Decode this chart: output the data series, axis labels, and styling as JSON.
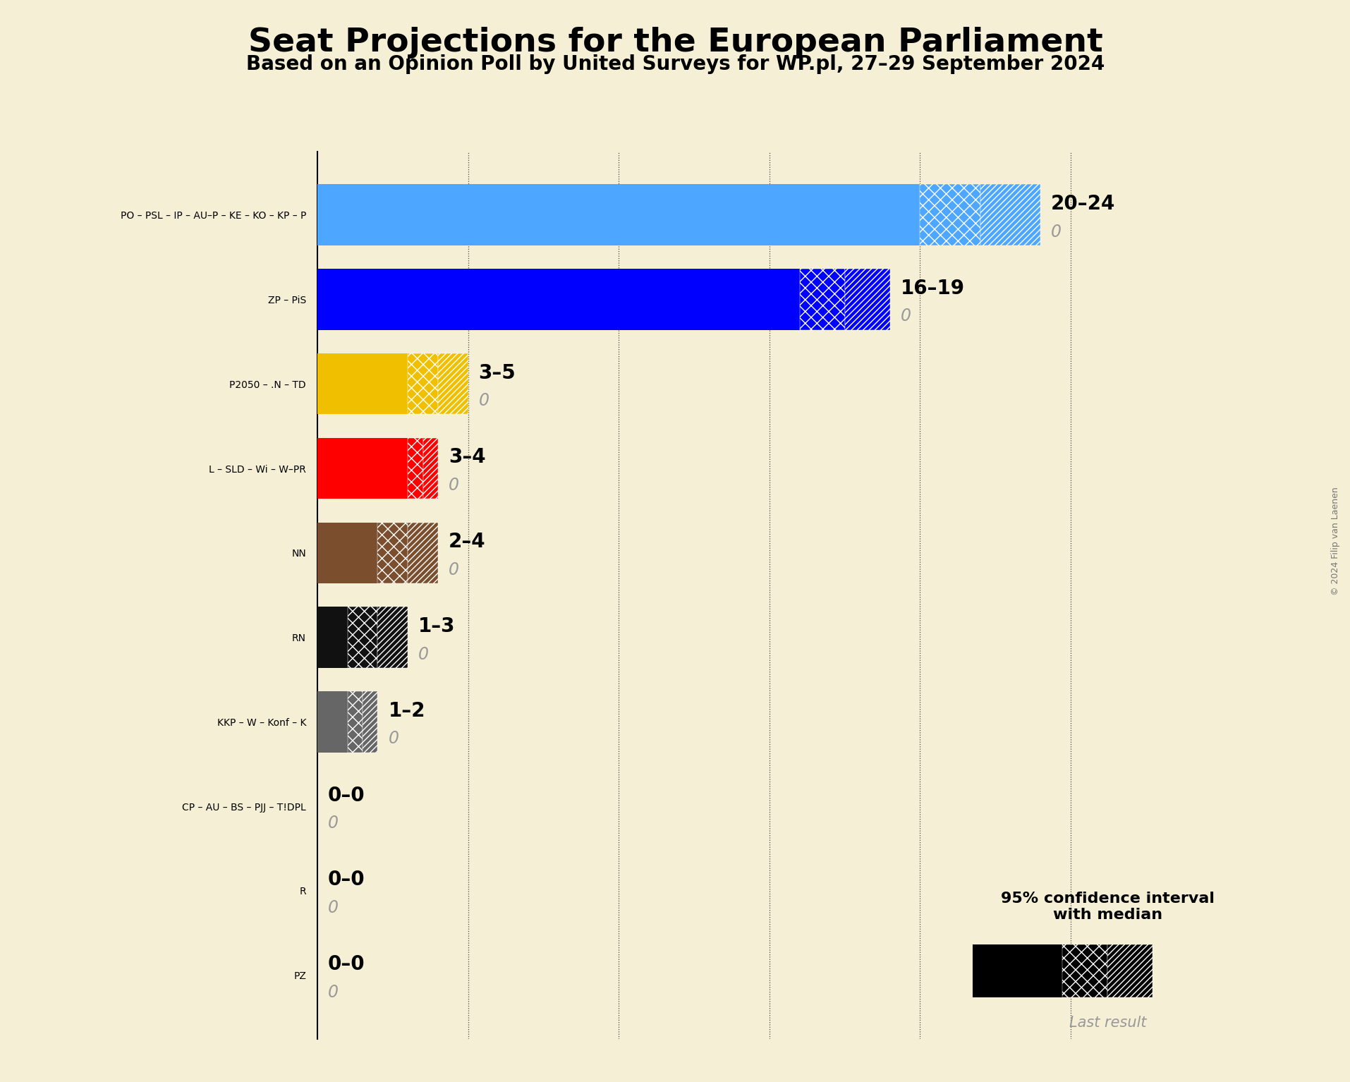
{
  "title": "Seat Projections for the European Parliament",
  "subtitle": "Based on an Opinion Poll by United Surveys for WP.pl, 27–29 September 2024",
  "copyright": "© 2024 Filip van Laenen",
  "background_color": "#f5f0d5",
  "parties": [
    "PO – PSL – IP – AU–P – KE – KO – KP – P",
    "ZP – PiS",
    "P2050 – .N – TD",
    "L – SLD – Wi – W–PR",
    "NN",
    "RN",
    "KKP – W – Konf – K",
    "CP – AU – BS – PJJ – T!DPL",
    "R",
    "PZ"
  ],
  "seat_min": [
    20,
    16,
    3,
    3,
    2,
    1,
    1,
    0,
    0,
    0
  ],
  "seat_median": [
    20,
    16,
    3,
    3,
    2,
    1,
    1,
    0,
    0,
    0
  ],
  "seat_max": [
    24,
    19,
    5,
    4,
    4,
    3,
    2,
    0,
    0,
    0
  ],
  "last_result": [
    0,
    0,
    0,
    0,
    0,
    0,
    0,
    0,
    0,
    0
  ],
  "colors": [
    "#4da6ff",
    "#0000ff",
    "#f0c000",
    "#ff0000",
    "#7b4f2e",
    "#111111",
    "#666666",
    "#888888",
    "#888888",
    "#888888"
  ],
  "label_min_max": [
    "20–24",
    "16–19",
    "3–5",
    "3–4",
    "2–4",
    "1–3",
    "1–2",
    "0–0",
    "0–0",
    "0–0"
  ],
  "xlim": [
    0,
    26
  ],
  "bar_height": 0.72
}
